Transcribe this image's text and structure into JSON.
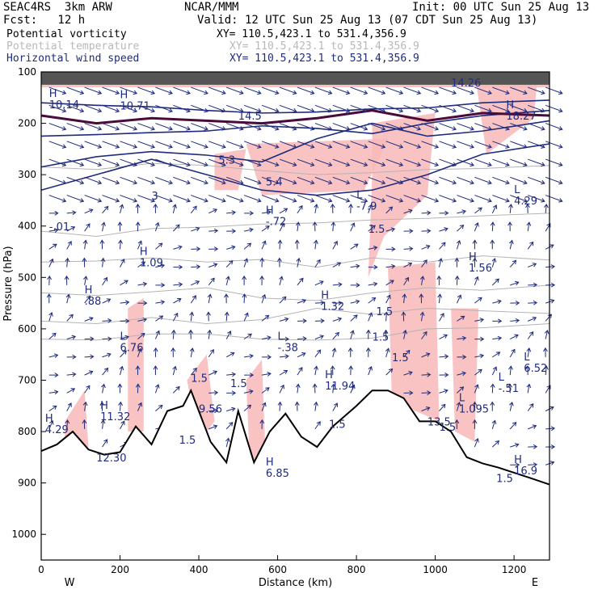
{
  "header": {
    "model": "SEAC4RS  3km ARW",
    "org": "NCAR/MMM",
    "init": "Init: 00 UTC Sun 25 Aug 13",
    "fcst": "Fcst:   12 h",
    "valid": "Valid: 12 UTC Sun 25 Aug 13 (07 CDT Sun 25 Aug 13)"
  },
  "legend": [
    {
      "label": "Potential vorticity",
      "xy": "XY= 110.5,423.1 to 531.4,356.9",
      "color": "#000000"
    },
    {
      "label": "Potential temperature",
      "xy": "XY= 110.5,423.1 to 531.4,356.9",
      "color": "#b0b0b0"
    },
    {
      "label": "Horizontal wind speed",
      "xy": "XY= 110.5,423.1 to 531.4,356.9",
      "color": "#1f2b7c"
    }
  ],
  "chart_data": {
    "type": "cross-section",
    "xlabel": "Distance (km)",
    "ylabel": "Pressure (hPa)",
    "xlim": [
      0,
      1290
    ],
    "ylim": [
      1050,
      100
    ],
    "x_ticks": [
      "0",
      "200",
      "400",
      "600",
      "800",
      "1000",
      "1200"
    ],
    "y_ticks": [
      "100",
      "200",
      "300",
      "400",
      "500",
      "600",
      "700",
      "800",
      "900",
      "1000"
    ],
    "end_labels": {
      "left": "W",
      "right": "E"
    },
    "terrain_pressure": [
      {
        "x": 0,
        "p": 838
      },
      {
        "x": 40,
        "p": 825
      },
      {
        "x": 80,
        "p": 800
      },
      {
        "x": 120,
        "p": 835
      },
      {
        "x": 160,
        "p": 845
      },
      {
        "x": 200,
        "p": 840
      },
      {
        "x": 240,
        "p": 790
      },
      {
        "x": 280,
        "p": 825
      },
      {
        "x": 320,
        "p": 760
      },
      {
        "x": 360,
        "p": 750
      },
      {
        "x": 380,
        "p": 720
      },
      {
        "x": 400,
        "p": 760
      },
      {
        "x": 430,
        "p": 820
      },
      {
        "x": 470,
        "p": 860
      },
      {
        "x": 500,
        "p": 760
      },
      {
        "x": 540,
        "p": 860
      },
      {
        "x": 580,
        "p": 800
      },
      {
        "x": 620,
        "p": 765
      },
      {
        "x": 660,
        "p": 810
      },
      {
        "x": 700,
        "p": 830
      },
      {
        "x": 740,
        "p": 790
      },
      {
        "x": 770,
        "p": 770
      },
      {
        "x": 800,
        "p": 750
      },
      {
        "x": 840,
        "p": 720
      },
      {
        "x": 880,
        "p": 720
      },
      {
        "x": 920,
        "p": 735
      },
      {
        "x": 960,
        "p": 780
      },
      {
        "x": 1000,
        "p": 780
      },
      {
        "x": 1040,
        "p": 800
      },
      {
        "x": 1080,
        "p": 850
      },
      {
        "x": 1120,
        "p": 862
      },
      {
        "x": 1160,
        "p": 870
      },
      {
        "x": 1200,
        "p": 880
      },
      {
        "x": 1240,
        "p": 890
      },
      {
        "x": 1290,
        "p": 903
      }
    ],
    "theta_contours_pressure": [
      [
        285,
        290,
        278,
        282,
        292,
        300,
        296,
        290,
        288,
        282
      ],
      [
        410,
        420,
        405,
        402,
        396,
        394,
        388,
        385,
        380,
        375
      ],
      [
        470,
        468,
        462,
        470,
        465,
        480,
        462,
        470,
        458,
        466
      ],
      [
        530,
        535,
        528,
        520,
        540,
        545,
        530,
        520,
        525,
        515
      ],
      [
        585,
        590,
        578,
        590,
        582,
        560,
        572,
        560,
        565,
        570
      ],
      [
        620,
        622,
        610,
        610,
        620,
        622,
        618,
        600,
        598,
        590
      ]
    ],
    "wind_speed_contours_pressure": [
      [
        160,
        165,
        168,
        175,
        180,
        178,
        172,
        170,
        160,
        155
      ],
      [
        225,
        222,
        218,
        215,
        205,
        210,
        220,
        200,
        185,
        175
      ],
      [
        285,
        265,
        255,
        262,
        275,
        230,
        200,
        225,
        215,
        195
      ],
      [
        330,
        300,
        270,
        300,
        330,
        340,
        330,
        300,
        260,
        240
      ]
    ],
    "contour_x": [
      0,
      140,
      280,
      420,
      560,
      700,
      840,
      980,
      1120,
      1290
    ],
    "pv_line_pressure": [
      185,
      200,
      190,
      195,
      200,
      190,
      175,
      195,
      180,
      185
    ],
    "labels": [
      {
        "t": "H",
        "v": "10.14",
        "x": 20,
        "p": 168
      },
      {
        "t": "H",
        "v": "10.71",
        "x": 200,
        "p": 170
      },
      {
        "t": "",
        "v": "14.5",
        "x": 500,
        "p": 190
      },
      {
        "t": "",
        "v": "14.26",
        "x": 1040,
        "p": 125
      },
      {
        "t": "H",
        "v": "18.27",
        "x": 1180,
        "p": 190
      },
      {
        "t": "",
        "v": "5.3",
        "x": 450,
        "p": 275
      },
      {
        "t": "",
        "v": "3",
        "x": 280,
        "p": 345
      },
      {
        "t": "",
        "v": "5.4",
        "x": 570,
        "p": 318
      },
      {
        "t": "L",
        "v": "-7.9",
        "x": 800,
        "p": 365
      },
      {
        "t": "",
        "v": "-.01",
        "x": 20,
        "p": 405
      },
      {
        "t": "H",
        "v": "-.72",
        "x": 570,
        "p": 395
      },
      {
        "t": "",
        "v": "1.5",
        "x": 830,
        "p": 410
      },
      {
        "t": "L",
        "v": "4.29",
        "x": 1200,
        "p": 355
      },
      {
        "t": "H",
        "v": "1.09",
        "x": 250,
        "p": 475
      },
      {
        "t": "H",
        "v": "1.56",
        "x": 1085,
        "p": 485
      },
      {
        "t": "H",
        "v": ".88",
        "x": 110,
        "p": 550
      },
      {
        "t": "H",
        "v": "1.32",
        "x": 710,
        "p": 560
      },
      {
        "t": "",
        "v": "1.5",
        "x": 850,
        "p": 570
      },
      {
        "t": "",
        "v": "1.5",
        "x": 840,
        "p": 620
      },
      {
        "t": "L",
        "v": "6.76",
        "x": 200,
        "p": 640
      },
      {
        "t": "L",
        "v": "-.38",
        "x": 600,
        "p": 640
      },
      {
        "t": "",
        "v": "1.5",
        "x": 890,
        "p": 660
      },
      {
        "t": "L",
        "v": "6.52",
        "x": 1225,
        "p": 680
      },
      {
        "t": "H",
        "v": "11.94",
        "x": 720,
        "p": 715
      },
      {
        "t": "L",
        "v": "-.51",
        "x": 1160,
        "p": 720
      },
      {
        "t": "",
        "v": "1.5",
        "x": 380,
        "p": 700
      },
      {
        "t": "",
        "v": "1.5",
        "x": 480,
        "p": 710
      },
      {
        "t": "",
        "v": "9.56",
        "x": 400,
        "p": 760
      },
      {
        "t": "L",
        "v": "1.095",
        "x": 1060,
        "p": 760
      },
      {
        "t": "H",
        "v": "11.32",
        "x": 150,
        "p": 775
      },
      {
        "t": "H",
        "v": "4.29",
        "x": 10,
        "p": 800
      },
      {
        "t": "",
        "v": "1.5",
        "x": 730,
        "p": 790
      },
      {
        "t": "",
        "v": "13.5",
        "x": 980,
        "p": 785
      },
      {
        "t": "",
        "v": "1.5",
        "x": 1010,
        "p": 795
      },
      {
        "t": "",
        "v": "1.5",
        "x": 350,
        "p": 820
      },
      {
        "t": "",
        "v": "12.30",
        "x": 140,
        "p": 855
      },
      {
        "t": "H",
        "v": "6.85",
        "x": 570,
        "p": 885
      },
      {
        "t": "H",
        "v": "16.9",
        "x": 1200,
        "p": 880
      },
      {
        "t": "",
        "v": "1.5",
        "x": 1155,
        "p": 895
      }
    ]
  }
}
